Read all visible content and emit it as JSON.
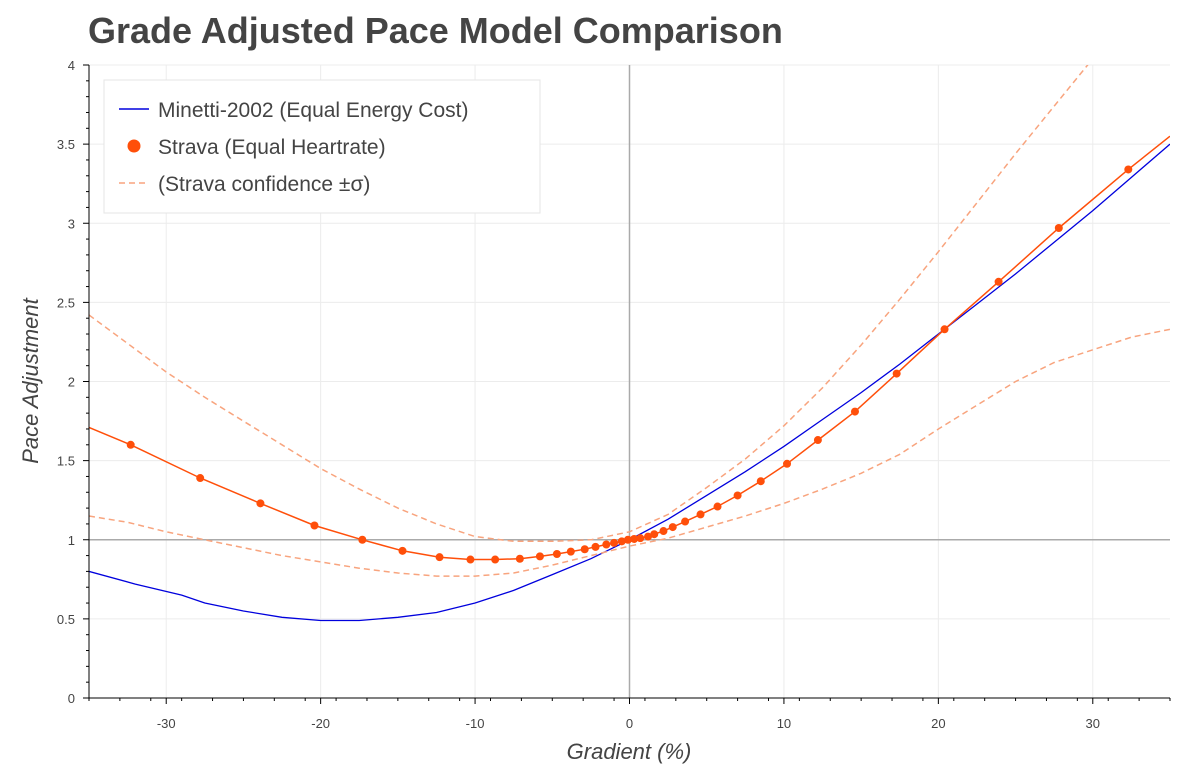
{
  "chart_data": {
    "type": "line",
    "title": "Grade Adjusted Pace Model Comparison",
    "xlabel": "Gradient (%)",
    "ylabel": "Pace Adjustment",
    "xlim": [
      -35,
      35
    ],
    "ylim": [
      0,
      4
    ],
    "xticks": [
      -30,
      -20,
      -10,
      0,
      10,
      20,
      30
    ],
    "xtick_labels": [
      "-30",
      "-20",
      "-10",
      "0",
      "10",
      "20",
      "30"
    ],
    "yticks": [
      0,
      0.5,
      1,
      1.5,
      2,
      2.5,
      3,
      3.5,
      4
    ],
    "ytick_labels": [
      "0",
      "0.5",
      "1",
      "1.5",
      "2",
      "2.5",
      "3",
      "3.5",
      "4"
    ],
    "grid": true,
    "reference_lines": {
      "x": 0,
      "y": 1
    },
    "legend_position": "top-left",
    "colors": {
      "minetti": "#0000dd",
      "strava": "#ff4f0a",
      "confidence": "#f8a47e",
      "text": "#444444",
      "grid": "#ececec",
      "refline": "#aaaaaa"
    },
    "series": [
      {
        "name": "Minetti-2002 (Equal Energy Cost)",
        "kind": "line",
        "x": [
          -35,
          -32,
          -29,
          -27.5,
          -25,
          -22.5,
          -20,
          -17.5,
          -15,
          -12.5,
          -10,
          -7.5,
          -5,
          -2.5,
          0,
          2.5,
          5,
          7.5,
          10,
          12.5,
          15,
          17.5,
          20,
          22.5,
          25,
          27.5,
          30,
          32.5,
          35
        ],
        "y": [
          0.8,
          0.72,
          0.65,
          0.6,
          0.55,
          0.51,
          0.49,
          0.49,
          0.51,
          0.54,
          0.6,
          0.68,
          0.78,
          0.88,
          1.0,
          1.13,
          1.28,
          1.43,
          1.59,
          1.76,
          1.93,
          2.11,
          2.3,
          2.49,
          2.68,
          2.88,
          3.08,
          3.29,
          3.5
        ]
      },
      {
        "name": "Strava (Equal Heartrate)",
        "kind": "line+markers",
        "x": [
          -35,
          -32.3,
          -27.8,
          -23.9,
          -20.4,
          -17.3,
          -14.7,
          -12.3,
          -10.3,
          -8.7,
          -7.1,
          -5.8,
          -4.7,
          -3.8,
          -2.9,
          -2.2,
          -1.5,
          -1.0,
          -0.5,
          -0.1,
          0.3,
          0.7,
          1.2,
          1.6,
          2.2,
          2.8,
          3.6,
          4.6,
          5.7,
          7.0,
          8.5,
          10.2,
          12.2,
          14.6,
          17.3,
          20.4,
          23.9,
          27.8,
          32.3,
          35
        ],
        "y": [
          1.71,
          1.6,
          1.39,
          1.23,
          1.09,
          1.0,
          0.93,
          0.89,
          0.875,
          0.875,
          0.88,
          0.895,
          0.91,
          0.925,
          0.94,
          0.955,
          0.97,
          0.98,
          0.99,
          1.0,
          1.005,
          1.01,
          1.02,
          1.035,
          1.055,
          1.08,
          1.115,
          1.16,
          1.21,
          1.28,
          1.37,
          1.48,
          1.63,
          1.81,
          2.05,
          2.33,
          2.63,
          2.97,
          3.34,
          3.55
        ]
      },
      {
        "name": "(Strava confidence ±σ)",
        "kind": "dashed",
        "x": [
          -35,
          -32.5,
          -30,
          -27.5,
          -25,
          -22.5,
          -20,
          -17.5,
          -15,
          -12.5,
          -10,
          -7.5,
          -5,
          -2.5,
          0,
          2.5,
          5,
          7.5,
          10,
          12.5,
          15,
          17.5,
          20,
          22.5,
          25,
          27.5,
          30
        ],
        "y": [
          2.42,
          2.24,
          2.06,
          1.9,
          1.75,
          1.6,
          1.45,
          1.32,
          1.2,
          1.1,
          1.02,
          0.99,
          0.99,
          1.0,
          1.05,
          1.16,
          1.33,
          1.51,
          1.72,
          1.96,
          2.23,
          2.52,
          2.82,
          3.13,
          3.44,
          3.74,
          4.04
        ]
      },
      {
        "name": "",
        "kind": "dashed",
        "x": [
          -35,
          -32.5,
          -30,
          -27.5,
          -25,
          -22.5,
          -20,
          -17.5,
          -15,
          -12.5,
          -10,
          -7.5,
          -5,
          -2.5,
          0,
          2.5,
          5,
          7.5,
          10,
          12.5,
          15,
          17.5,
          20,
          22.5,
          25,
          27.5,
          30,
          32.5,
          35
        ],
        "y": [
          1.15,
          1.11,
          1.05,
          1.0,
          0.95,
          0.9,
          0.86,
          0.82,
          0.79,
          0.77,
          0.77,
          0.79,
          0.84,
          0.9,
          0.96,
          1.01,
          1.08,
          1.15,
          1.23,
          1.32,
          1.42,
          1.54,
          1.7,
          1.85,
          2.0,
          2.12,
          2.2,
          2.28,
          2.33
        ]
      }
    ]
  }
}
